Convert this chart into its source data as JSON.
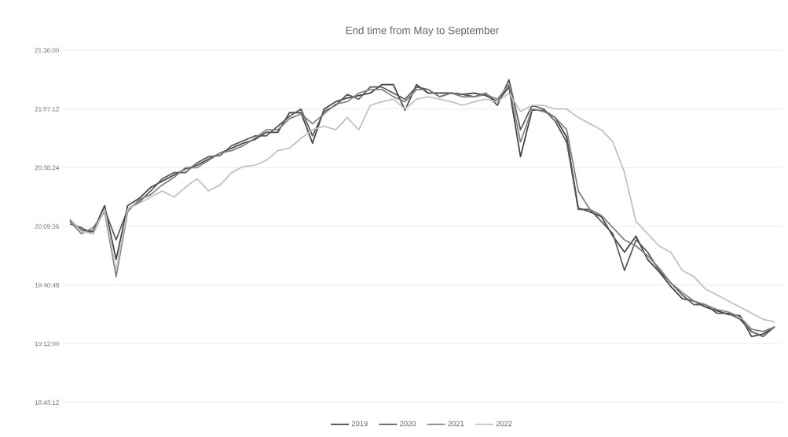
{
  "chart_data": {
    "type": "line",
    "title": "End time from May to September",
    "categories": [
      null,
      null,
      null,
      null,
      null,
      null,
      null,
      null,
      null,
      null,
      null,
      null,
      null,
      null,
      null,
      null,
      null,
      null,
      null,
      null,
      null,
      null,
      null,
      null,
      null,
      null,
      null,
      null,
      null,
      null,
      null,
      null,
      null,
      null,
      null,
      null,
      null,
      null,
      null,
      null,
      null,
      null,
      null,
      null,
      null,
      null,
      null,
      null,
      null,
      null,
      null,
      null,
      null,
      null,
      null,
      null,
      null,
      null,
      null,
      null,
      null,
      null
    ],
    "series": [
      {
        "name": "2019",
        "color": "#404040",
        "values": [
          20.21,
          20.13,
          20.12,
          20.33,
          19.89,
          20.33,
          20.39,
          20.48,
          20.53,
          20.58,
          20.63,
          20.66,
          20.71,
          20.76,
          20.8,
          20.84,
          20.87,
          20.93,
          20.93,
          21.09,
          21.09,
          20.84,
          21.12,
          21.18,
          21.21,
          21.23,
          21.25,
          21.32,
          21.32,
          21.11,
          21.32,
          21.25,
          21.25,
          21.25,
          21.24,
          21.25,
          21.23,
          21.18,
          21.3,
          20.73,
          21.11,
          21.11,
          21.05,
          20.89,
          20.31,
          20.28,
          20.24,
          20.08,
          19.95,
          20.08,
          19.89,
          19.79,
          19.67,
          19.57,
          19.55,
          19.5,
          19.47,
          19.44,
          19.43,
          19.26,
          19.28,
          19.34
        ]
      },
      {
        "name": "2020",
        "color": "#595959",
        "values": [
          20.18,
          20.15,
          20.1,
          20.3,
          20.05,
          20.3,
          20.36,
          20.45,
          20.55,
          20.6,
          20.6,
          20.68,
          20.73,
          20.74,
          20.82,
          20.86,
          20.9,
          20.9,
          20.98,
          21.06,
          21.12,
          20.9,
          21.1,
          21.15,
          21.24,
          21.2,
          21.3,
          21.3,
          21.25,
          21.2,
          21.3,
          21.28,
          21.22,
          21.25,
          21.24,
          21.22,
          21.25,
          21.15,
          21.36,
          20.95,
          21.15,
          21.12,
          21.02,
          20.85,
          20.3,
          20.3,
          20.2,
          20.1,
          19.8,
          20.05,
          19.95,
          19.8,
          19.7,
          19.6,
          19.52,
          19.52,
          19.45,
          19.45,
          19.4,
          19.3,
          19.26,
          19.34
        ]
      },
      {
        "name": "2021",
        "color": "#808080",
        "values": [
          20.2,
          20.1,
          20.15,
          20.28,
          19.75,
          20.28,
          20.38,
          20.42,
          20.5,
          20.56,
          20.64,
          20.64,
          20.7,
          20.76,
          20.78,
          20.82,
          20.88,
          20.95,
          20.95,
          21.04,
          21.08,
          21.0,
          21.08,
          21.16,
          21.18,
          21.25,
          21.28,
          21.28,
          21.22,
          21.18,
          21.28,
          21.28,
          21.22,
          21.25,
          21.22,
          21.22,
          21.24,
          21.2,
          21.32,
          20.85,
          21.12,
          21.1,
          21.05,
          20.95,
          20.45,
          20.3,
          20.25,
          20.15,
          20.05,
          20.0,
          19.92,
          19.82,
          19.7,
          19.62,
          19.55,
          19.52,
          19.48,
          19.46,
          19.42,
          19.32,
          19.3,
          19.34
        ]
      },
      {
        "name": "2022",
        "color": "#c0c0c0",
        "values": [
          20.22,
          20.12,
          20.1,
          20.3,
          19.8,
          20.3,
          20.35,
          20.4,
          20.45,
          20.4,
          20.48,
          20.55,
          20.45,
          20.5,
          20.6,
          20.65,
          20.66,
          20.7,
          20.78,
          20.8,
          20.88,
          20.95,
          20.98,
          20.95,
          21.05,
          20.95,
          21.15,
          21.18,
          21.2,
          21.12,
          21.2,
          21.22,
          21.2,
          21.18,
          21.15,
          21.18,
          21.2,
          21.18,
          21.25,
          21.1,
          21.15,
          21.15,
          21.12,
          21.12,
          21.05,
          21.0,
          20.95,
          20.85,
          20.6,
          20.2,
          20.1,
          20.0,
          19.95,
          19.8,
          19.75,
          19.65,
          19.6,
          19.55,
          19.5,
          19.45,
          19.4,
          19.38
        ]
      }
    ],
    "ylim": [
      18.72,
      21.6
    ],
    "yticks": [
      {
        "value": 18.72,
        "label": "18:43:12"
      },
      {
        "value": 19.2,
        "label": "19:12:00"
      },
      {
        "value": 19.68,
        "label": "19:40:48"
      },
      {
        "value": 20.16,
        "label": "20:09:36"
      },
      {
        "value": 20.64,
        "label": "20:38:24"
      },
      {
        "value": 21.12,
        "label": "21:07:12"
      },
      {
        "value": 21.6,
        "label": "21:36:00"
      }
    ],
    "grid": "y",
    "legend": "bottom"
  }
}
